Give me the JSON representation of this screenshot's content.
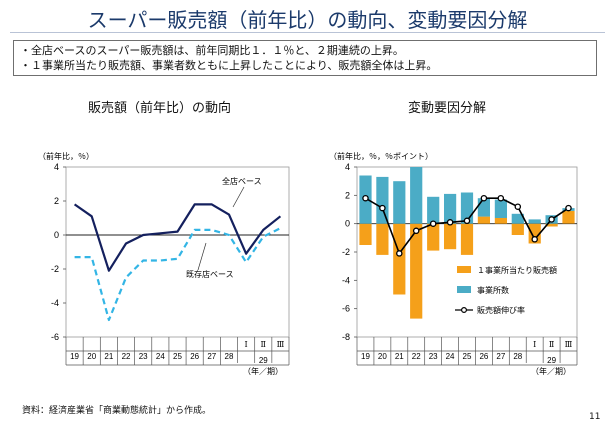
{
  "title": "スーパー販売額（前年比）の動向、変動要因分解",
  "bullets": [
    "・全店ベースのスーパー販売額は、前年同期比１．１％と、２期連続の上昇。",
    "・１事業所当たり販売額、事業者数ともに上昇したことにより、販売額全体は上昇。"
  ],
  "source": "資料：経済産業省「商業動態統計」から作成。",
  "page_number": "11",
  "chart_data": [
    {
      "type": "line",
      "title": "販売額（前年比）の動向",
      "unit_label": "（前年比，％）",
      "x": [
        "19",
        "20",
        "21",
        "22",
        "23",
        "24",
        "25",
        "26",
        "27",
        "28",
        "Ⅰ",
        "Ⅱ",
        "Ⅲ"
      ],
      "period_label": "29",
      "axis_note": "（年／期）",
      "ylim": [
        -6,
        4
      ],
      "yticks": [
        -6,
        -4,
        -2,
        0,
        2,
        4
      ],
      "series": [
        {
          "name": "全店ベース",
          "color": "#14205e",
          "dash": false,
          "values": [
            1.8,
            1.1,
            -2.1,
            -0.5,
            0.0,
            0.1,
            0.2,
            1.8,
            1.8,
            1.2,
            -1.1,
            0.3,
            1.1
          ]
        },
        {
          "name": "既存店ベース",
          "color": "#33b5e5",
          "dash": true,
          "values": [
            -1.3,
            -1.3,
            -5.0,
            -2.5,
            -1.5,
            -1.5,
            -1.4,
            0.3,
            0.3,
            0.0,
            -1.6,
            -0.1,
            0.4
          ]
        }
      ]
    },
    {
      "type": "bar",
      "title": "変動要因分解",
      "unit_label": "（前年比，％，％ポイント）",
      "x": [
        "19",
        "20",
        "21",
        "22",
        "23",
        "24",
        "25",
        "26",
        "27",
        "28",
        "Ⅰ",
        "Ⅱ",
        "Ⅲ"
      ],
      "period_label": "29",
      "axis_note": "（年／期）",
      "ylim": [
        -8,
        4
      ],
      "yticks": [
        -8,
        -6,
        -4,
        -2,
        0,
        2,
        4
      ],
      "series": [
        {
          "name": "１事業所当たり販売額",
          "color": "#f5a01a",
          "kind": "bar",
          "values": [
            -1.5,
            -2.2,
            -5.0,
            -6.7,
            -1.9,
            -1.8,
            -2.2,
            0.5,
            0.4,
            -0.8,
            -1.4,
            -0.2,
            0.9
          ]
        },
        {
          "name": "事業所数",
          "color": "#4bacc6",
          "kind": "bar",
          "values": [
            3.4,
            3.3,
            3.0,
            4.0,
            1.9,
            2.1,
            2.2,
            1.3,
            1.3,
            0.7,
            0.3,
            0.6,
            0.2
          ]
        },
        {
          "name": "販売額伸び率",
          "color": "#000000",
          "kind": "line",
          "values": [
            1.8,
            1.1,
            -2.1,
            -0.5,
            0.0,
            0.1,
            0.2,
            1.8,
            1.8,
            1.2,
            -1.1,
            0.3,
            1.1
          ]
        }
      ]
    }
  ]
}
